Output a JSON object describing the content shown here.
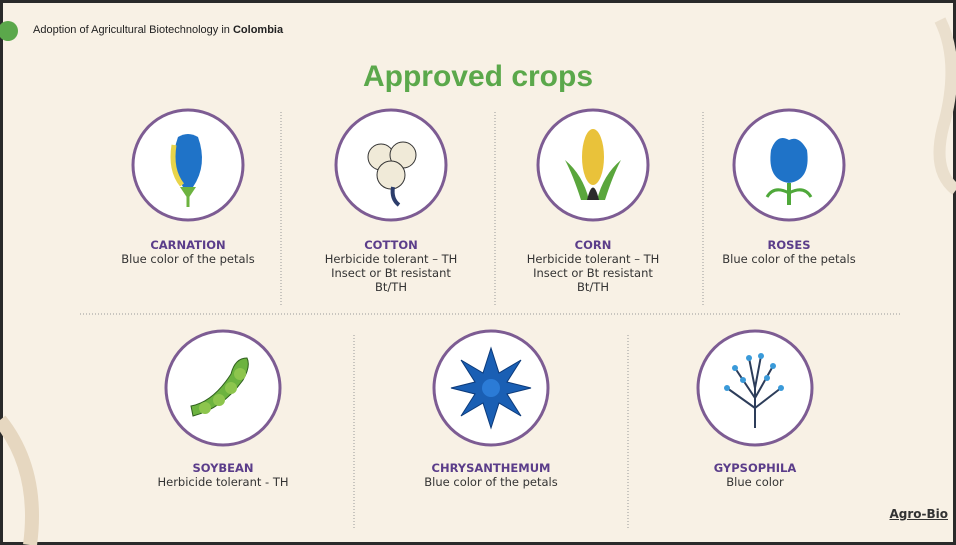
{
  "header": {
    "text": "Adoption of Agricultural Biotechnology in ",
    "country": "Colombia"
  },
  "title": "Approved crops",
  "crops": [
    {
      "name": "CARNATION",
      "lines": [
        "Blue color of the petals"
      ]
    },
    {
      "name": "COTTON",
      "lines": [
        "Herbicide tolerant – TH",
        "Insect or Bt resistant Bt/TH"
      ]
    },
    {
      "name": "CORN",
      "lines": [
        "Herbicide tolerant – TH",
        "Insect or Bt resistant Bt/TH"
      ]
    },
    {
      "name": "ROSES",
      "lines": [
        "Blue color of the petals"
      ]
    },
    {
      "name": "SOYBEAN",
      "lines": [
        "Herbicide tolerant - TH"
      ]
    },
    {
      "name": "CHRYSANTHEMUM",
      "lines": [
        "Blue color of the petals"
      ]
    },
    {
      "name": "GYPSOPHILA",
      "lines": [
        "Blue color"
      ]
    }
  ],
  "logo": "Agro-Bio"
}
